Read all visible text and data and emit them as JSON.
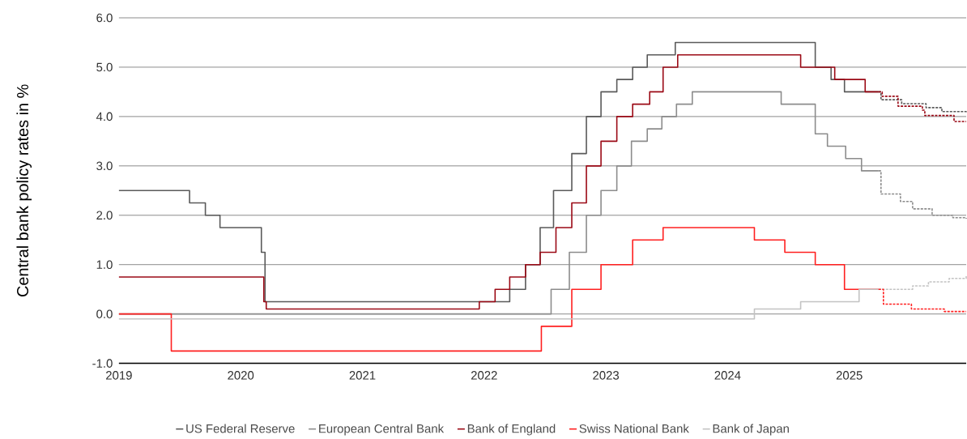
{
  "chart_data": {
    "type": "step",
    "ylabel": "Central bank policy rates in %",
    "xlim": [
      2019,
      2025.96
    ],
    "xticks": [
      2019,
      2020,
      2021,
      2022,
      2023,
      2024,
      2025
    ],
    "ylim": [
      -1,
      6
    ],
    "yticks": [
      {
        "value": -1,
        "label": "-1.0"
      },
      {
        "value": 0,
        "label": "0.0"
      },
      {
        "value": 1,
        "label": "1.0"
      },
      {
        "value": 2,
        "label": "2.0"
      },
      {
        "value": 3,
        "label": "3.0"
      },
      {
        "value": 4,
        "label": "4.0"
      },
      {
        "value": 5,
        "label": "5.0"
      },
      {
        "value": 6,
        "label": "6.0"
      }
    ],
    "grid": "y",
    "legend": "bottom",
    "marker": "none",
    "line_style": "solid",
    "series": [
      {
        "name": "US Federal Reserve",
        "color": "#5a5a5a",
        "x": [
          2019,
          2019.58,
          2019.71,
          2019.83,
          2020.17,
          2020.2,
          2022.21,
          2022.34,
          2022.46,
          2022.57,
          2022.72,
          2022.84,
          2022.96,
          2023.09,
          2023.22,
          2023.34,
          2023.57,
          2024.72,
          2024.85,
          2024.96,
          2025.24
        ],
        "values": [
          2.5,
          2.25,
          2.0,
          1.75,
          1.25,
          0.25,
          0.5,
          1.0,
          1.75,
          2.5,
          3.25,
          4.0,
          4.5,
          4.75,
          5.0,
          5.25,
          5.5,
          5.0,
          4.75,
          4.5,
          4.5
        ]
      },
      {
        "name": "European Central Bank",
        "color": "#8c8c8c",
        "x": [
          2019,
          2022.55,
          2022.7,
          2022.84,
          2022.96,
          2023.09,
          2023.21,
          2023.34,
          2023.46,
          2023.58,
          2023.71,
          2024.44,
          2024.72,
          2024.82,
          2024.97,
          2025.1,
          2025.24
        ],
        "values": [
          0,
          0.5,
          1.25,
          2.0,
          2.5,
          3.0,
          3.5,
          3.75,
          4.0,
          4.25,
          4.5,
          4.25,
          3.65,
          3.4,
          3.15,
          2.9,
          2.9
        ]
      },
      {
        "name": "Bank of England",
        "color": "#9b0a16",
        "x": [
          2019,
          2020.19,
          2020.21,
          2021.96,
          2022.09,
          2022.21,
          2022.34,
          2022.46,
          2022.59,
          2022.72,
          2022.84,
          2022.96,
          2023.09,
          2023.22,
          2023.36,
          2023.47,
          2023.59,
          2024.6,
          2024.88,
          2025.13,
          2025.24
        ],
        "values": [
          0.75,
          0.25,
          0.1,
          0.25,
          0.5,
          0.75,
          1.0,
          1.25,
          1.75,
          2.25,
          3.0,
          3.5,
          4.0,
          4.25,
          4.5,
          5.0,
          5.25,
          5.0,
          4.75,
          4.5,
          4.5
        ]
      },
      {
        "name": "Swiss National Bank",
        "color": "#ff2020",
        "x": [
          2019,
          2019.43,
          2022.47,
          2022.72,
          2022.96,
          2023.22,
          2023.47,
          2024.22,
          2024.47,
          2024.72,
          2024.96,
          2025.24
        ],
        "values": [
          0,
          -0.75,
          -0.25,
          0.5,
          1.0,
          1.5,
          1.75,
          1.5,
          1.25,
          1.0,
          0.5,
          0.5
        ]
      },
      {
        "name": "Bank of Japan",
        "color": "#c3c3c3",
        "x": [
          2019,
          2024.22,
          2024.6,
          2025.08,
          2025.24
        ],
        "values": [
          -0.1,
          0.1,
          0.25,
          0.5,
          0.5
        ]
      },
      {
        "color": "#5a5a5a",
        "line_style": "dashed",
        "x": [
          2025.24,
          2025.26,
          2025.43,
          2025.63,
          2025.76,
          2025.96
        ],
        "values": [
          4.5,
          4.34,
          4.26,
          4.18,
          4.1,
          4.08
        ]
      },
      {
        "color": "#8c8c8c",
        "line_style": "dashed",
        "x": [
          2025.24,
          2025.26,
          2025.42,
          2025.52,
          2025.68,
          2025.85,
          2025.96
        ],
        "values": [
          2.9,
          2.43,
          2.28,
          2.13,
          2.0,
          1.95,
          1.93
        ]
      },
      {
        "color": "#9b0a16",
        "line_style": "dashed",
        "x": [
          2025.24,
          2025.27,
          2025.4,
          2025.6,
          2025.62,
          2025.86,
          2025.96
        ],
        "values": [
          4.5,
          4.41,
          4.21,
          4.13,
          4.02,
          3.9,
          3.9
        ]
      },
      {
        "color": "#c3c3c3",
        "line_style": "dashed",
        "x": [
          2025.24,
          2025.4,
          2025.52,
          2025.65,
          2025.82,
          2025.96
        ],
        "values": [
          0.5,
          0.5,
          0.57,
          0.65,
          0.72,
          0.78
        ]
      },
      {
        "color": "#ff2020",
        "line_style": "dashed",
        "x": [
          2025.24,
          2025.28,
          2025.51,
          2025.78,
          2025.96
        ],
        "values": [
          0.5,
          0.2,
          0.1,
          0.05,
          0.05
        ]
      }
    ]
  }
}
